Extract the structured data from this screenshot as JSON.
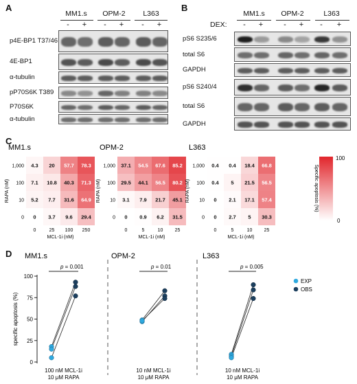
{
  "panels": {
    "A": {
      "letter": "A",
      "cell_lines": [
        "MM1.s",
        "OPM-2",
        "L363"
      ],
      "dex_signs": [
        "-",
        "+",
        "-",
        "+",
        "-",
        "+"
      ],
      "rows": [
        {
          "label": "p4E-BP1 T37/46",
          "intensity": [
            0.55,
            0.5,
            0.6,
            0.55,
            0.6,
            0.55
          ]
        },
        {
          "label": "4E-BP1",
          "intensity": [
            0.65,
            0.6,
            0.7,
            0.6,
            0.7,
            0.65
          ]
        },
        {
          "label": "α-tubulin",
          "intensity": [
            0.6,
            0.6,
            0.6,
            0.6,
            0.6,
            0.6
          ]
        },
        {
          "label": "pP70S6K T389",
          "intensity": [
            0.35,
            0.3,
            0.55,
            0.4,
            0.4,
            0.35
          ]
        },
        {
          "label": "P70S6K",
          "intensity": [
            0.55,
            0.5,
            0.6,
            0.55,
            0.6,
            0.55
          ]
        },
        {
          "label": "α-tubulin",
          "intensity": [
            0.5,
            0.5,
            0.5,
            0.5,
            0.5,
            0.5
          ]
        }
      ]
    },
    "B": {
      "letter": "B",
      "dex_label": "DEX:",
      "cell_lines": [
        "MM1.s",
        "OPM-2",
        "L363"
      ],
      "dex_signs": [
        "-",
        "+",
        "-",
        "+",
        "-",
        "+"
      ],
      "rows": [
        {
          "label": "pS6 S235/6",
          "intensity": [
            0.95,
            0.25,
            0.35,
            0.2,
            0.8,
            0.3
          ]
        },
        {
          "label": "total S6",
          "intensity": [
            0.5,
            0.5,
            0.55,
            0.5,
            0.55,
            0.5
          ]
        },
        {
          "label": "GAPDH",
          "intensity": [
            0.6,
            0.6,
            0.6,
            0.6,
            0.6,
            0.6
          ]
        },
        {
          "label": "pS6 S240/4",
          "intensity": [
            0.85,
            0.55,
            0.6,
            0.5,
            0.9,
            0.6
          ]
        },
        {
          "label": "total S6",
          "intensity": [
            0.55,
            0.55,
            0.6,
            0.55,
            0.6,
            0.55
          ]
        },
        {
          "label": "GAPDH",
          "intensity": [
            0.65,
            0.65,
            0.65,
            0.65,
            0.65,
            0.65
          ]
        }
      ]
    },
    "C": {
      "letter": "C",
      "colorbar": {
        "label": "Specific apoptosis (%)",
        "max_tick": "100",
        "min_tick": "0",
        "color_high": "#e1262c",
        "color_low": "#ffffff"
      },
      "heatmaps": [
        {
          "title": "MM1.s",
          "xlabel": "MCL-1i (nM)",
          "ylabel": "RAPA (nM)",
          "x_ticks": [
            "0",
            "25",
            "100",
            "250"
          ],
          "y_ticks": [
            "1,000",
            "100",
            "10",
            "0"
          ],
          "values": [
            [
              4.3,
              20.0,
              57.7,
              78.3
            ],
            [
              7.1,
              10.8,
              40.3,
              71.3
            ],
            [
              5.2,
              7.7,
              31.6,
              64.9
            ],
            [
              0,
              3.7,
              9.6,
              29.4
            ]
          ]
        },
        {
          "title": "OPM-2",
          "xlabel": "MCL-1i (nM)",
          "ylabel": "RAPA (nM)",
          "x_ticks": [
            "0",
            "5",
            "10",
            "25"
          ],
          "y_ticks": [
            "1,000",
            "100",
            "10",
            "0"
          ],
          "values": [
            [
              37.1,
              54.5,
              67.6,
              85.2
            ],
            [
              29.5,
              44.1,
              56.5,
              80.2
            ],
            [
              3.1,
              7.9,
              21.7,
              45.1
            ],
            [
              0,
              0.9,
              6.2,
              31.5
            ]
          ]
        },
        {
          "title": "L363",
          "xlabel": "MCL-1i (nM)",
          "ylabel": "RAPA (nM)",
          "x_ticks": [
            "0",
            "5",
            "10",
            "25"
          ],
          "y_ticks": [
            "1,000",
            "100",
            "10",
            "0"
          ],
          "values": [
            [
              0.4,
              0.4,
              18.4,
              66.8
            ],
            [
              0.4,
              5.0,
              21.5,
              56.5
            ],
            [
              0,
              2.1,
              17.1,
              57.4
            ],
            [
              0,
              2.7,
              5.0,
              30.3
            ]
          ]
        }
      ]
    },
    "D": {
      "letter": "D",
      "chart_data": {
        "type": "scatter",
        "ylabel": "specific apoptosis (%)",
        "ylim": [
          0,
          100
        ],
        "y_ticks": [
          0,
          25,
          50,
          75,
          100
        ],
        "legend": [
          {
            "name": "EXP",
            "color": "#2ea9df"
          },
          {
            "name": "OBS",
            "color": "#1c3f5e"
          }
        ],
        "legend_placement": "right",
        "groups": [
          {
            "title": "MM1.s",
            "p_value": "= 0.001",
            "xlabel_line1": "100 nM MCL-1i",
            "xlabel_line2": "10 μM RAPA",
            "pairs": [
              [
                18,
                93
              ],
              [
                15,
                88
              ],
              [
                5,
                77
              ]
            ]
          },
          {
            "title": "OPM-2",
            "p_value": "= 0.01",
            "xlabel_line1": "10 nM MCL-1i",
            "xlabel_line2": "10 μM RAPA",
            "pairs": [
              [
                49,
                83
              ],
              [
                47,
                77
              ],
              [
                48,
                74
              ]
            ]
          },
          {
            "title": "L363",
            "p_value": "= 0.005",
            "xlabel_line1": "10 nM MCL-1i",
            "xlabel_line2": "10 μM RAPA",
            "pairs": [
              [
                9,
                90
              ],
              [
                7,
                84
              ],
              [
                5,
                74
              ]
            ]
          }
        ]
      }
    }
  }
}
